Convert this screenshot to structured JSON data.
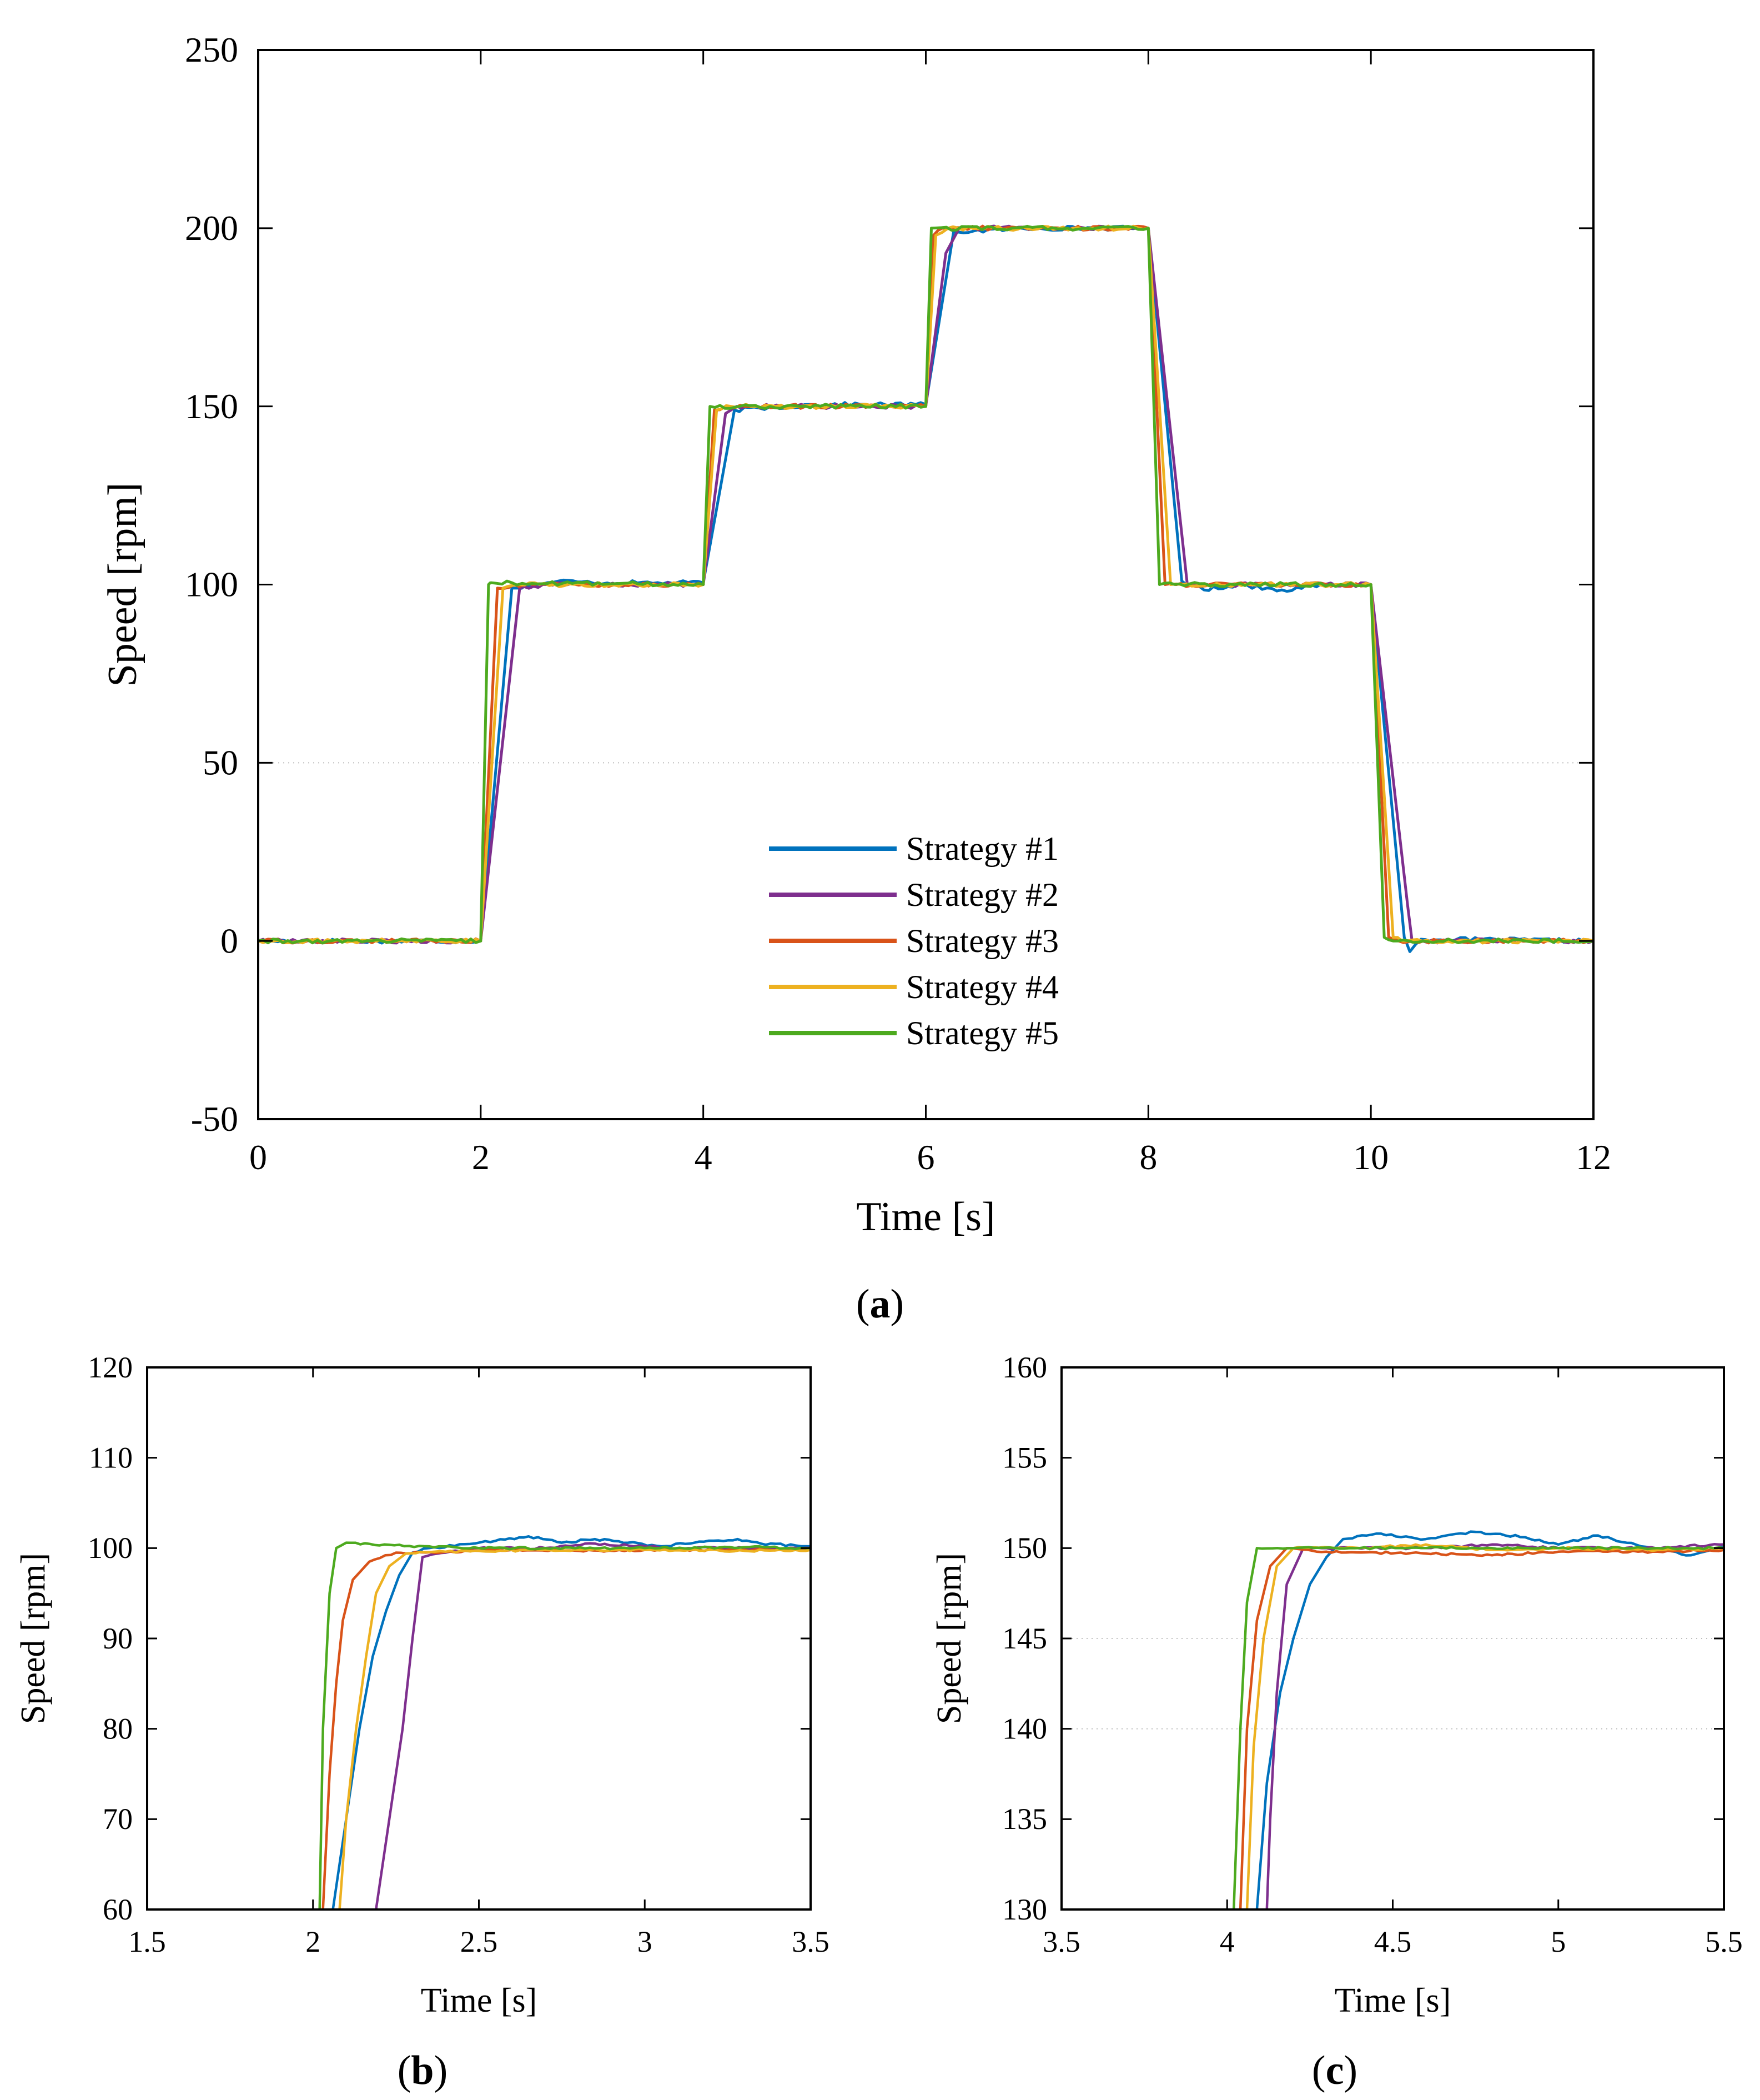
{
  "panel_labels": {
    "a": "a",
    "b": "b",
    "c": "c"
  },
  "colors": {
    "Strategy #1": "#0072BD",
    "Strategy #2": "#7E2F8E",
    "Strategy #3": "#D95319",
    "Strategy #4": "#EDB120",
    "Strategy #5": "#4DAA1F",
    "dotted_grid": "#bdbdbd"
  },
  "chart_data": [
    {
      "id": "a",
      "type": "line",
      "title": "",
      "xlabel": "Time [s]",
      "ylabel": "Speed [rpm]",
      "xlim": [
        0,
        12
      ],
      "ylim": [
        -50,
        250
      ],
      "xticks": [
        0,
        2,
        4,
        6,
        8,
        10,
        12
      ],
      "yticks": [
        -50,
        0,
        50,
        100,
        150,
        200,
        250
      ],
      "dotted_gridlines_y": [
        50
      ],
      "legend_position": "inside-bottom-center",
      "series": [
        {
          "name": "Strategy #1",
          "points": [
            [
              0,
              0
            ],
            [
              2.0,
              0
            ],
            [
              2.28,
              99
            ],
            [
              2.5,
              100
            ],
            [
              2.7,
              101
            ],
            [
              3,
              100.5
            ],
            [
              4.0,
              100.5
            ],
            [
              4.28,
              149
            ],
            [
              5,
              150.5
            ],
            [
              6.0,
              150.5
            ],
            [
              6.25,
              199
            ],
            [
              7,
              200
            ],
            [
              8.0,
              200
            ],
            [
              8.3,
              101
            ],
            [
              8.5,
              98.5
            ],
            [
              8.8,
              100
            ],
            [
              9.2,
              98.5
            ],
            [
              9.6,
              100
            ],
            [
              10.0,
              100
            ],
            [
              10.3,
              1
            ],
            [
              10.35,
              -3
            ],
            [
              10.45,
              0.5
            ],
            [
              12,
              0
            ]
          ]
        },
        {
          "name": "Strategy #2",
          "points": [
            [
              0,
              0
            ],
            [
              2.0,
              0
            ],
            [
              2.35,
              99
            ],
            [
              2.6,
              100
            ],
            [
              4.0,
              100
            ],
            [
              4.2,
              148
            ],
            [
              4.3,
              150
            ],
            [
              6.0,
              150
            ],
            [
              6.18,
              193
            ],
            [
              6.3,
              200
            ],
            [
              8.0,
              200
            ],
            [
              8.35,
              100
            ],
            [
              8.6,
              100
            ],
            [
              10.0,
              100
            ],
            [
              10.33,
              10
            ],
            [
              10.37,
              0
            ],
            [
              12,
              0
            ]
          ]
        },
        {
          "name": "Strategy #3",
          "points": [
            [
              0,
              0
            ],
            [
              2.0,
              0
            ],
            [
              2.15,
              99
            ],
            [
              2.3,
              100
            ],
            [
              4.0,
              100
            ],
            [
              4.1,
              149
            ],
            [
              4.2,
              150
            ],
            [
              6.0,
              150
            ],
            [
              6.07,
              198
            ],
            [
              6.15,
              200
            ],
            [
              8.0,
              200
            ],
            [
              8.15,
              100
            ],
            [
              8.25,
              100
            ],
            [
              10.0,
              100
            ],
            [
              10.16,
              1
            ],
            [
              10.25,
              0
            ],
            [
              12,
              0
            ]
          ]
        },
        {
          "name": "Strategy #4",
          "points": [
            [
              0,
              0
            ],
            [
              2.0,
              0
            ],
            [
              2.2,
              99
            ],
            [
              2.35,
              100
            ],
            [
              4.0,
              100
            ],
            [
              4.12,
              149
            ],
            [
              4.25,
              150
            ],
            [
              6.0,
              150
            ],
            [
              6.09,
              198
            ],
            [
              6.2,
              200
            ],
            [
              8.0,
              200
            ],
            [
              8.2,
              100
            ],
            [
              8.3,
              100
            ],
            [
              10.0,
              100
            ],
            [
              10.2,
              1
            ],
            [
              10.28,
              0
            ],
            [
              12,
              0
            ]
          ]
        },
        {
          "name": "Strategy #5",
          "points": [
            [
              0,
              0
            ],
            [
              2.0,
              0
            ],
            [
              2.07,
              100
            ],
            [
              2.1,
              100.5
            ],
            [
              4.0,
              100
            ],
            [
              4.06,
              150
            ],
            [
              6.0,
              150
            ],
            [
              6.05,
              200
            ],
            [
              8.0,
              200
            ],
            [
              8.1,
              100
            ],
            [
              10.0,
              100
            ],
            [
              10.12,
              1
            ],
            [
              10.2,
              0
            ],
            [
              12,
              0
            ]
          ]
        }
      ]
    },
    {
      "id": "b",
      "type": "line",
      "title": "",
      "xlabel": "Time [s]",
      "ylabel": "Speed [rpm]",
      "xlim": [
        1.5,
        3.5
      ],
      "ylim": [
        60,
        120
      ],
      "xticks": [
        1.5,
        2,
        2.5,
        3,
        3.5
      ],
      "yticks": [
        60,
        70,
        80,
        90,
        100,
        110,
        120
      ],
      "series": [
        {
          "name": "Strategy #1",
          "points": [
            [
              2.06,
              60
            ],
            [
              2.1,
              70
            ],
            [
              2.14,
              80
            ],
            [
              2.18,
              88
            ],
            [
              2.22,
              93
            ],
            [
              2.26,
              97
            ],
            [
              2.3,
              99.5
            ],
            [
              2.35,
              100
            ],
            [
              2.55,
              100.8
            ],
            [
              2.65,
              101.3
            ],
            [
              2.75,
              100.6
            ],
            [
              2.85,
              101
            ],
            [
              2.95,
              100.6
            ],
            [
              3.05,
              100.2
            ],
            [
              3.15,
              100.6
            ],
            [
              3.28,
              101
            ],
            [
              3.35,
              100.5
            ],
            [
              3.5,
              100.2
            ]
          ]
        },
        {
          "name": "Strategy #2",
          "points": [
            [
              2.19,
              60
            ],
            [
              2.23,
              70
            ],
            [
              2.27,
              80
            ],
            [
              2.3,
              90
            ],
            [
              2.33,
              99
            ],
            [
              2.4,
              99.5
            ],
            [
              2.5,
              100
            ],
            [
              2.7,
              100
            ],
            [
              2.85,
              100.5
            ],
            [
              3.1,
              100
            ],
            [
              3.3,
              100
            ],
            [
              3.5,
              100
            ]
          ]
        },
        {
          "name": "Strategy #3",
          "points": [
            [
              2.03,
              60
            ],
            [
              2.05,
              75
            ],
            [
              2.07,
              85
            ],
            [
              2.09,
              92
            ],
            [
              2.12,
              96.5
            ],
            [
              2.17,
              98.5
            ],
            [
              2.25,
              99.5
            ],
            [
              2.4,
              99.6
            ],
            [
              2.6,
              99.8
            ],
            [
              2.8,
              99.7
            ],
            [
              3.0,
              99.8
            ],
            [
              3.3,
              99.8
            ],
            [
              3.5,
              99.8
            ]
          ]
        },
        {
          "name": "Strategy #4",
          "points": [
            [
              2.08,
              60
            ],
            [
              2.1,
              70
            ],
            [
              2.13,
              80
            ],
            [
              2.16,
              88
            ],
            [
              2.19,
              95
            ],
            [
              2.23,
              98
            ],
            [
              2.28,
              99.4
            ],
            [
              2.4,
              99.6
            ],
            [
              2.7,
              99.8
            ],
            [
              3.0,
              99.8
            ],
            [
              3.3,
              99.7
            ],
            [
              3.5,
              99.8
            ]
          ]
        },
        {
          "name": "Strategy #5",
          "points": [
            [
              2.02,
              60
            ],
            [
              2.03,
              80
            ],
            [
              2.05,
              95
            ],
            [
              2.07,
              100
            ],
            [
              2.1,
              100.6
            ],
            [
              2.2,
              100.3
            ],
            [
              2.35,
              100.2
            ],
            [
              2.5,
              100
            ],
            [
              2.7,
              100
            ],
            [
              3.0,
              100
            ],
            [
              3.3,
              100.1
            ],
            [
              3.5,
              100
            ]
          ]
        }
      ]
    },
    {
      "id": "c",
      "type": "line",
      "title": "",
      "xlabel": "Time [s]",
      "ylabel": "Speed [rpm]",
      "xlim": [
        3.5,
        5.5
      ],
      "ylim": [
        130,
        160
      ],
      "xticks": [
        3.5,
        4,
        4.5,
        5,
        5.5
      ],
      "yticks": [
        130,
        135,
        140,
        145,
        150,
        155,
        160
      ],
      "dotted_gridlines_y": [
        140,
        145
      ],
      "series": [
        {
          "name": "Strategy #1",
          "points": [
            [
              4.09,
              130
            ],
            [
              4.12,
              137
            ],
            [
              4.16,
              142
            ],
            [
              4.2,
              145
            ],
            [
              4.25,
              148
            ],
            [
              4.3,
              149.5
            ],
            [
              4.35,
              150.5
            ],
            [
              4.45,
              150.8
            ],
            [
              4.6,
              150.5
            ],
            [
              4.75,
              150.9
            ],
            [
              4.9,
              150.6
            ],
            [
              5.0,
              150.2
            ],
            [
              5.12,
              150.7
            ],
            [
              5.25,
              150.1
            ],
            [
              5.4,
              149.6
            ],
            [
              5.5,
              150.1
            ]
          ]
        },
        {
          "name": "Strategy #2",
          "points": [
            [
              4.12,
              130
            ],
            [
              4.13,
              135
            ],
            [
              4.15,
              142
            ],
            [
              4.18,
              148
            ],
            [
              4.23,
              150
            ],
            [
              4.3,
              150
            ],
            [
              4.6,
              150
            ],
            [
              4.8,
              150.2
            ],
            [
              5.0,
              150
            ],
            [
              5.25,
              150
            ],
            [
              5.5,
              150.2
            ]
          ]
        },
        {
          "name": "Strategy #3",
          "points": [
            [
              4.04,
              130
            ],
            [
              4.06,
              140
            ],
            [
              4.09,
              146
            ],
            [
              4.13,
              149
            ],
            [
              4.18,
              150
            ],
            [
              4.3,
              149.8
            ],
            [
              4.6,
              149.7
            ],
            [
              4.8,
              149.6
            ],
            [
              5.0,
              149.8
            ],
            [
              5.3,
              149.8
            ],
            [
              5.5,
              149.9
            ]
          ]
        },
        {
          "name": "Strategy #4",
          "points": [
            [
              4.06,
              130
            ],
            [
              4.08,
              139
            ],
            [
              4.11,
              145
            ],
            [
              4.15,
              149
            ],
            [
              4.2,
              150
            ],
            [
              4.4,
              150
            ],
            [
              4.6,
              150.2
            ],
            [
              4.8,
              149.9
            ],
            [
              5.0,
              150
            ],
            [
              5.3,
              149.9
            ],
            [
              5.5,
              150
            ]
          ]
        },
        {
          "name": "Strategy #5",
          "points": [
            [
              4.02,
              130
            ],
            [
              4.04,
              140
            ],
            [
              4.06,
              147
            ],
            [
              4.09,
              150
            ],
            [
              4.2,
              150
            ],
            [
              4.4,
              150
            ],
            [
              4.6,
              150
            ],
            [
              4.8,
              150
            ],
            [
              5.0,
              150
            ],
            [
              5.3,
              150
            ],
            [
              5.5,
              150
            ]
          ]
        }
      ]
    }
  ]
}
